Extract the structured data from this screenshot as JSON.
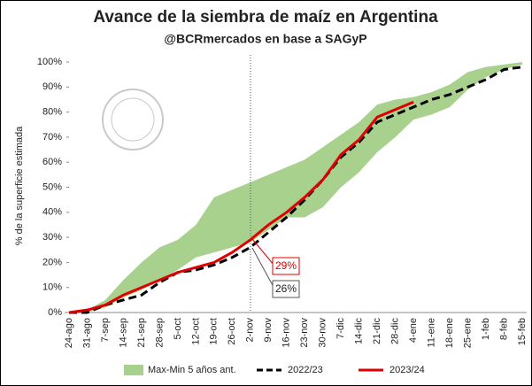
{
  "chart_data": {
    "type": "line",
    "title": "Avance de la siembra de maíz en Argentina",
    "subtitle": "@BCRmercados en base a SAGyP",
    "y_label": "% de la superficie estimada",
    "categories": [
      "24-ago",
      "31-ago",
      "7-sep",
      "14-sep",
      "21-sep",
      "28-sep",
      "5-oct",
      "12-oct",
      "19-oct",
      "26-oct",
      "2-nov",
      "9-nov",
      "16-nov",
      "23-nov",
      "30-nov",
      "7-dic",
      "14-dic",
      "21-dic",
      "28-dic",
      "4-ene",
      "11-ene",
      "18-ene",
      "25-ene",
      "1-feb",
      "8-feb",
      "15-feb"
    ],
    "band": {
      "name": "Max-Min 5 años ant.",
      "color": "#a9d18e",
      "max": [
        0,
        1,
        5,
        13,
        20,
        26,
        29,
        35,
        46,
        49,
        52,
        55,
        58,
        61,
        66,
        71,
        76,
        83,
        85,
        86,
        88,
        91,
        96,
        98,
        99,
        100
      ],
      "min": [
        0,
        0,
        2,
        6,
        9,
        13,
        17,
        22,
        24,
        26,
        28,
        33,
        38,
        38,
        42,
        50,
        56,
        64,
        70,
        77,
        79,
        82,
        89,
        94,
        97,
        99
      ]
    },
    "series": [
      {
        "name": "2022/23",
        "color": "#000000",
        "dashed": true,
        "values": [
          0,
          0,
          3,
          5,
          7,
          12,
          16,
          17,
          19,
          22,
          26,
          32,
          38,
          45,
          53,
          62,
          68,
          76,
          79,
          82,
          85,
          87,
          90,
          93,
          97,
          98
        ]
      },
      {
        "name": "2023/24",
        "color": "#e00000",
        "dashed": false,
        "values": [
          0,
          1,
          3,
          7,
          10,
          13,
          16,
          18,
          20,
          24,
          29,
          35,
          40,
          46,
          53,
          63,
          69,
          78,
          81,
          84,
          null,
          null,
          null,
          null,
          null,
          null
        ]
      }
    ],
    "annotations": [
      "29%",
      "26%"
    ],
    "ylim": [
      0,
      100
    ],
    "yticks": [
      {
        "value": 0,
        "label": "0%"
      },
      {
        "value": 10,
        "label": "10%"
      },
      {
        "value": 20,
        "label": "20%"
      },
      {
        "value": 30,
        "label": "30%"
      },
      {
        "value": 40,
        "label": "40%"
      },
      {
        "value": 50,
        "label": "50%"
      },
      {
        "value": 60,
        "label": "60%"
      },
      {
        "value": 70,
        "label": "70%"
      },
      {
        "value": 80,
        "label": "80%"
      },
      {
        "value": 90,
        "label": "90%"
      },
      {
        "value": 100,
        "label": "100%"
      }
    ]
  }
}
